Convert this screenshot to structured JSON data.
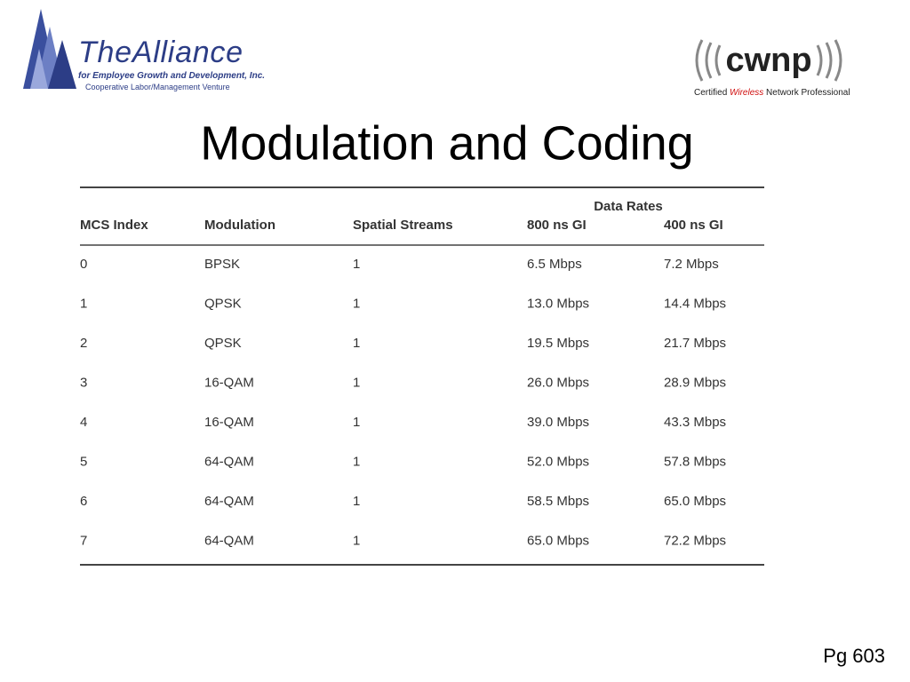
{
  "logo_left": {
    "name": "TheAlliance",
    "tagline": "for Employee Growth and Development, Inc.",
    "subline": "Cooperative Labor/Management Venture"
  },
  "logo_right": {
    "name": "cwnp",
    "tagline": [
      "Certified ",
      "Wireless",
      " Network Professional"
    ]
  },
  "title": "Modulation and Coding",
  "table": {
    "group_header": "Data Rates",
    "columns": [
      "MCS Index",
      "Modulation",
      "Spatial Streams",
      "800 ns GI",
      "400 ns GI"
    ],
    "rows": [
      [
        "0",
        "BPSK",
        "1",
        "6.5 Mbps",
        "7.2 Mbps"
      ],
      [
        "1",
        "QPSK",
        "1",
        "13.0 Mbps",
        "14.4 Mbps"
      ],
      [
        "2",
        "QPSK",
        "1",
        "19.5 Mbps",
        "21.7 Mbps"
      ],
      [
        "3",
        "16-QAM",
        "1",
        "26.0 Mbps",
        "28.9 Mbps"
      ],
      [
        "4",
        "16-QAM",
        "1",
        "39.0 Mbps",
        "43.3 Mbps"
      ],
      [
        "5",
        "64-QAM",
        "1",
        "52.0 Mbps",
        "57.8 Mbps"
      ],
      [
        "6",
        "64-QAM",
        "1",
        "58.5 Mbps",
        "65.0 Mbps"
      ],
      [
        "7",
        "64-QAM",
        "1",
        "65.0 Mbps",
        "72.2 Mbps"
      ]
    ]
  },
  "footer": "Pg 603"
}
